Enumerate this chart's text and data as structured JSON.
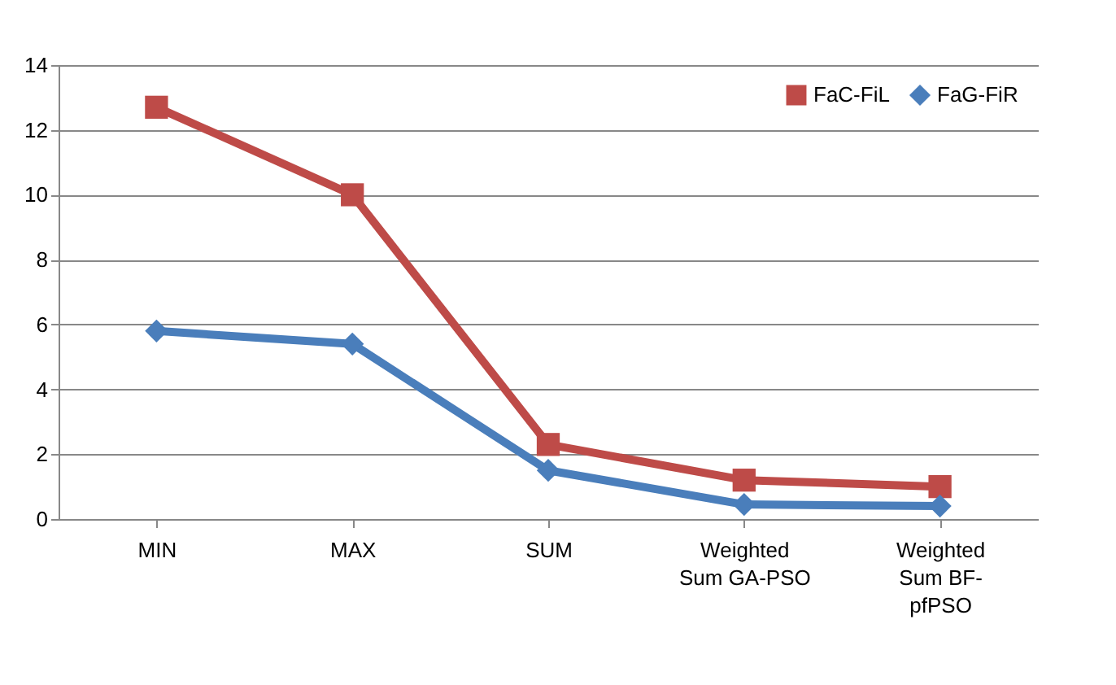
{
  "chart_data": {
    "type": "line",
    "categories": [
      "MIN",
      "MAX",
      "SUM",
      "Weighted Sum GA-PSO",
      "Weighted Sum BF-pfPSO"
    ],
    "series": [
      {
        "name": "FaC-FiL",
        "color": "#be4b48",
        "marker": "square",
        "values": [
          12.7,
          10.0,
          2.3,
          1.2,
          1.0
        ]
      },
      {
        "name": "FaG-FiR",
        "color": "#4a7ebb",
        "marker": "diamond",
        "values": [
          5.8,
          5.4,
          1.5,
          0.45,
          0.4
        ]
      }
    ],
    "ylim": [
      0,
      14
    ],
    "yticks": [
      0,
      2,
      4,
      6,
      8,
      10,
      12,
      14
    ],
    "grid": "y",
    "legend": "top right"
  }
}
